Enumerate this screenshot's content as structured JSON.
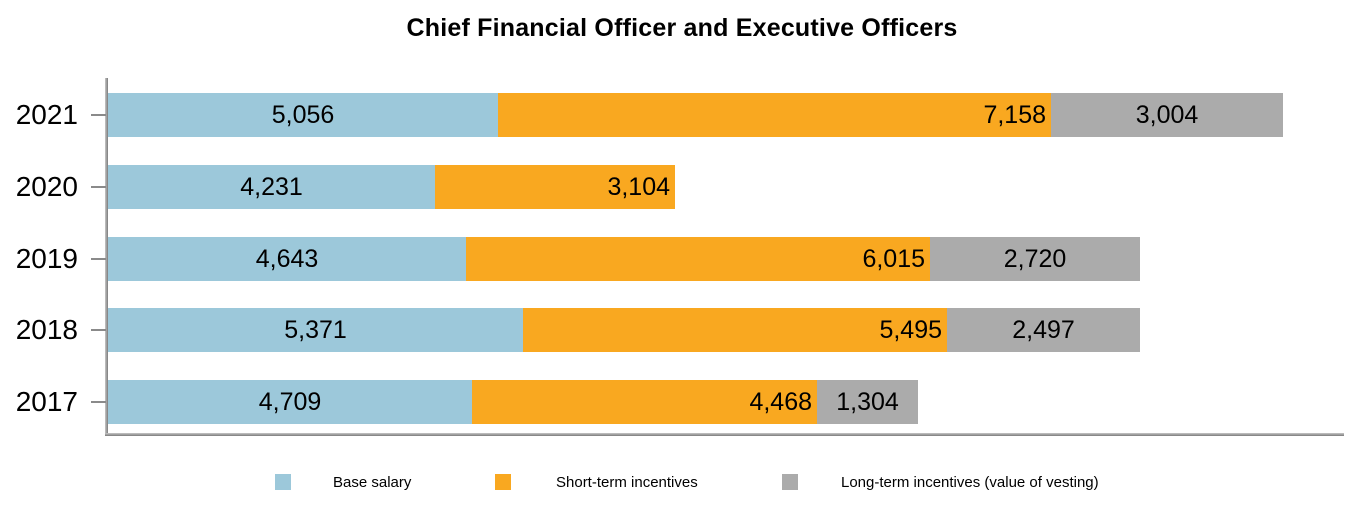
{
  "title": "Chief Financial Officer and Executive Officers",
  "chart_data": {
    "type": "bar",
    "orientation": "horizontal",
    "stacked": true,
    "title": "Chief Financial Officer and Executive Officers",
    "categories": [
      "2021",
      "2020",
      "2019",
      "2018",
      "2017"
    ],
    "series": [
      {
        "name": "Base salary",
        "color": "#9CC8DA",
        "label_align": "center",
        "values": [
          5056,
          4231,
          4643,
          5371,
          4709
        ],
        "labels": [
          "5,056",
          "4,231",
          "4,643",
          "5,371",
          "4,709"
        ]
      },
      {
        "name": "Short-term incentives",
        "color": "#F9A820",
        "label_align": "right",
        "values": [
          7158,
          3104,
          6015,
          5495,
          4468
        ],
        "labels": [
          "7,158",
          "3,104",
          "6,015",
          "5,495",
          "4,468"
        ]
      },
      {
        "name": "Long-term incentives (value of vesting)",
        "color": "#ABABAB",
        "label_align": "center",
        "values": [
          3004,
          null,
          2720,
          2497,
          1304
        ],
        "labels": [
          "3,004",
          null,
          "2,720",
          "2,497",
          "1,304"
        ]
      }
    ],
    "legend_position": "bottom",
    "grid": false,
    "data_labels_shown": true,
    "axis_color": "#8A8A8A",
    "text_color": "#000000"
  }
}
